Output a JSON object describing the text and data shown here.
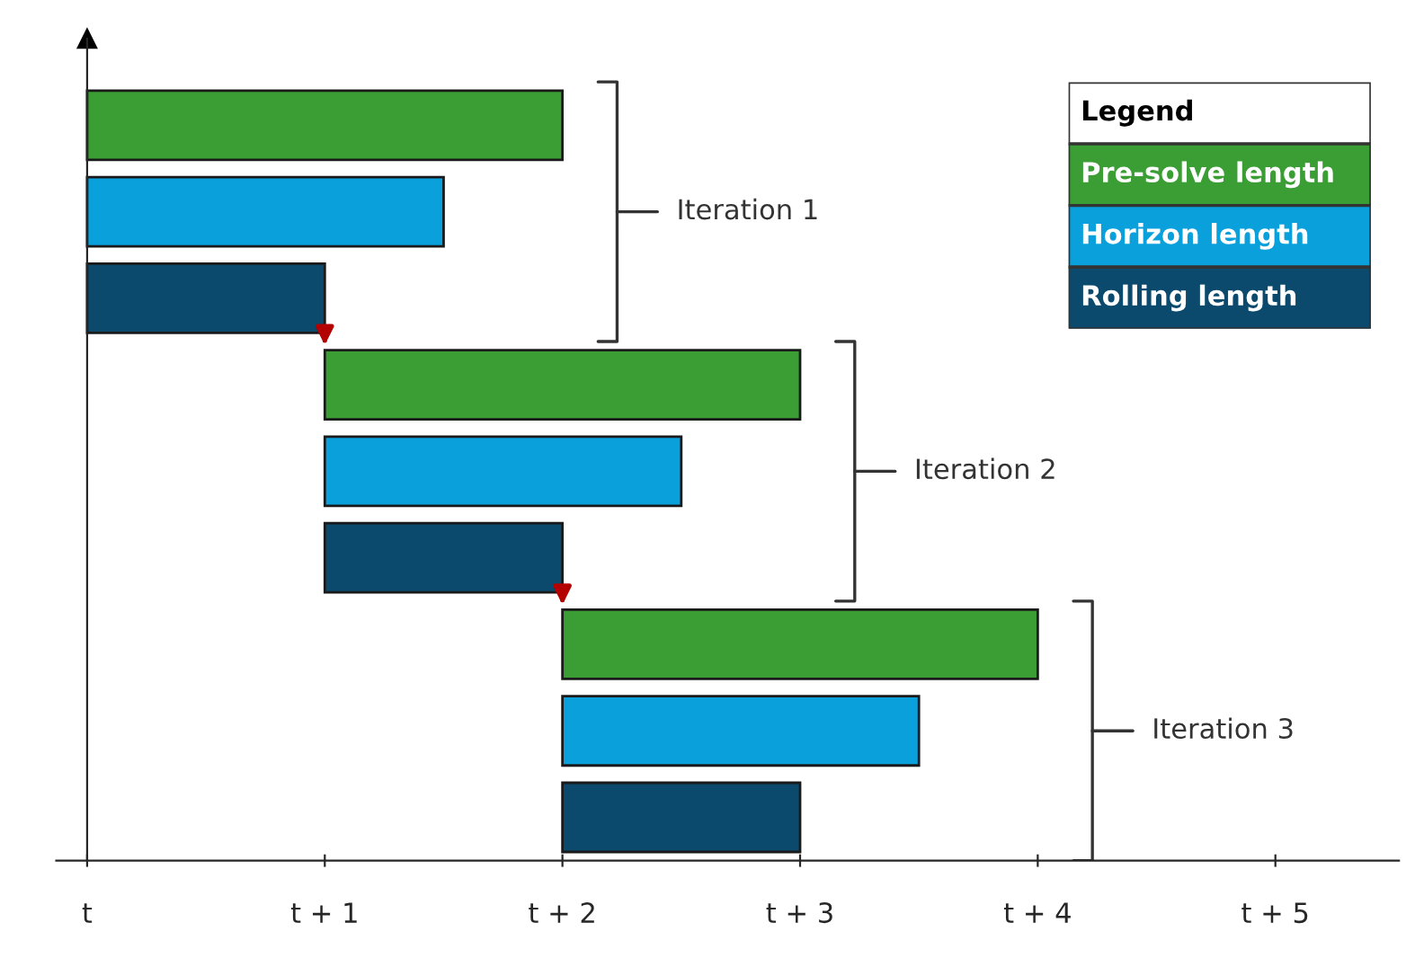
{
  "chart_data": [
    {
      "type": "bar",
      "orientation": "horizontal",
      "tick_labels": "x",
      "categories": [
        null,
        null,
        null,
        null,
        null,
        null,
        null,
        null,
        null
      ],
      "xlim": [
        -0.13,
        5.52
      ],
      "xticks": [
        {
          "value": 0,
          "label": "t"
        },
        {
          "value": 1,
          "label": "t + 1"
        },
        {
          "value": 2,
          "label": "t + 2"
        },
        {
          "value": 3,
          "label": "t + 3"
        },
        {
          "value": 4,
          "label": "t + 4"
        },
        {
          "value": 5,
          "label": "t + 5"
        }
      ],
      "values": [
        2,
        1.5,
        1,
        2,
        1.5,
        1,
        2,
        1.5,
        1
      ],
      "base": [
        0,
        0,
        0,
        1,
        1,
        1,
        2,
        2,
        2
      ],
      "colors": [
        "#3a9e35",
        "#0aa0dc",
        "#0b4a6c",
        "#3a9e35",
        "#0aa0dc",
        "#0b4a6c",
        "#3a9e35",
        "#0aa0dc",
        "#0b4a6c"
      ],
      "annotations": [
        "Iteration 1",
        "Iteration 2",
        "Iteration 3"
      ]
    },
    {
      "type": "other",
      "title": "Legend",
      "annotations": [
        "Pre-solve length",
        "Horizon length",
        "Rolling length"
      ]
    }
  ]
}
